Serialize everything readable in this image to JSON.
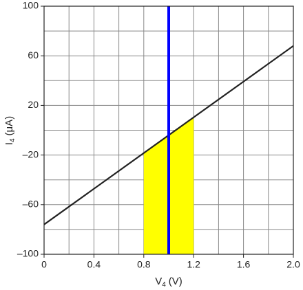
{
  "chart_data": {
    "type": "line",
    "xlabel": {
      "text": "V",
      "sub": "4",
      "unit": "(V)"
    },
    "ylabel": {
      "text": "I",
      "sub": "4",
      "unit": "(μA)"
    },
    "x": [
      0,
      2.0
    ],
    "series": [
      {
        "color": "#222222",
        "values": [
          -76,
          68
        ]
      }
    ],
    "shade": {
      "x": [
        0.8,
        1.2
      ],
      "values": [
        -18.4,
        10.4
      ],
      "color": "#ffff00"
    },
    "vline": {
      "x": 1.0,
      "color": "#0000ff"
    },
    "xlim": [
      0,
      2.0
    ],
    "ylim": [
      -100,
      100
    ],
    "xticks": [
      0,
      0.4,
      0.8,
      1.2,
      1.6,
      {
        "value": 2,
        "label": "2.0"
      }
    ],
    "yticks": [
      {
        "value": -100,
        "label": "–100"
      },
      {
        "value": -60,
        "label": "–60"
      },
      {
        "value": -20,
        "label": "–20"
      },
      20,
      60,
      100
    ],
    "xgrid": [
      0.2,
      0.4,
      0.6,
      0.8,
      1.0,
      1.2,
      1.4,
      1.6,
      1.8
    ],
    "ygrid": [
      -80,
      -60,
      -40,
      -20,
      0,
      20,
      40,
      60,
      80
    ],
    "grid": true
  }
}
